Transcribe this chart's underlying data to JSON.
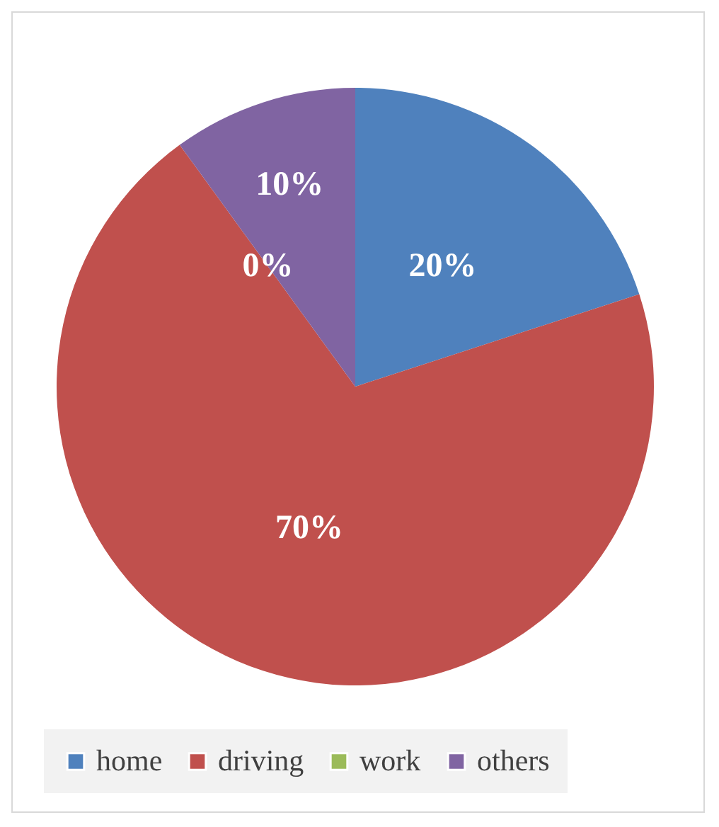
{
  "chart_data": {
    "type": "pie",
    "categories": [
      "home",
      "driving",
      "work",
      "others"
    ],
    "values": [
      20,
      70,
      0,
      10
    ],
    "colors": [
      "#4f81bd",
      "#c0504d",
      "#9bbb59",
      "#8064a2"
    ],
    "value_labels": [
      "20%",
      "70%",
      "0%",
      "10%"
    ],
    "legend": "bottom"
  }
}
